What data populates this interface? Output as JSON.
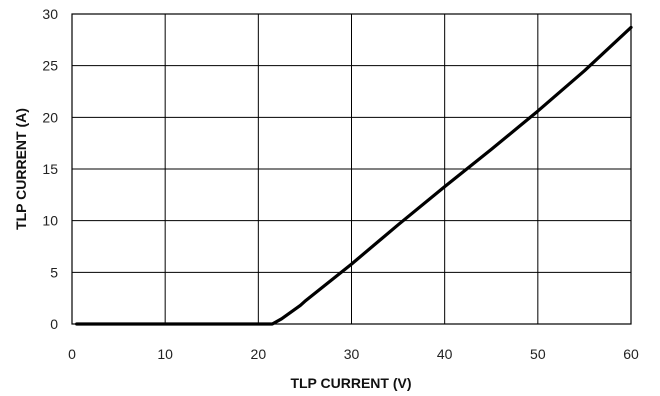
{
  "chart_data": {
    "type": "line",
    "title": "",
    "xlabel": "TLP CURRENT  (V)",
    "ylabel": "TLP CURRENT  (A)",
    "xlim": [
      0,
      60
    ],
    "ylim": [
      0,
      30
    ],
    "xticks": [
      0,
      10,
      20,
      30,
      40,
      50,
      60
    ],
    "yticks": [
      0,
      5,
      10,
      15,
      20,
      25,
      30
    ],
    "grid": true,
    "legend": "none",
    "series": [
      {
        "color": "#000000",
        "x": [
          0.5,
          5,
          10,
          15,
          20,
          21.5,
          22.5,
          24.5,
          25,
          30,
          35,
          40,
          45,
          50,
          55,
          60
        ],
        "y": [
          0,
          0,
          0,
          0,
          0,
          0,
          0.5,
          1.8,
          2.2,
          5.8,
          9.6,
          13.3,
          16.9,
          20.6,
          24.5,
          28.7
        ]
      }
    ]
  }
}
